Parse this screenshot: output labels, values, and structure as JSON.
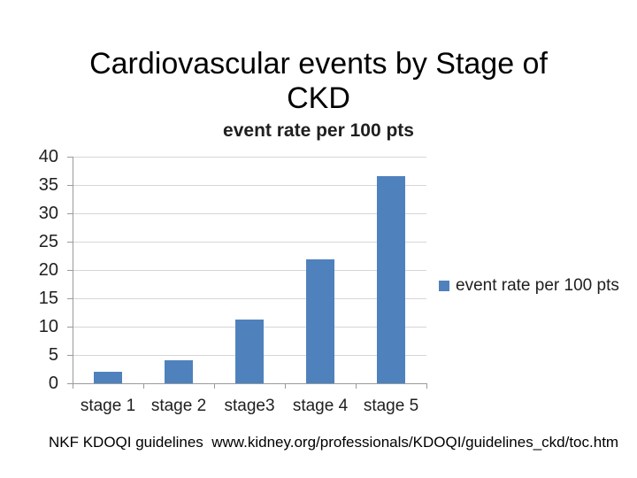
{
  "slide": {
    "title_lines": [
      "Cardiovascular events by Stage of",
      "CKD"
    ],
    "citation": "NKF KDOQI guidelines  www.kidney.org/professionals/KDOQI/guidelines_ckd/toc.htm"
  },
  "chart_data": {
    "type": "bar",
    "title": "event rate per 100 pts",
    "categories": [
      "stage 1",
      "stage 2",
      "stage3",
      "stage 4",
      "stage 5"
    ],
    "values": [
      2.1,
      4,
      11.3,
      21.8,
      36.6
    ],
    "series": [
      {
        "name": "event rate per 100 pts",
        "values": [
          2.1,
          4,
          11.3,
          21.8,
          36.6
        ]
      }
    ],
    "xlabel": "",
    "ylabel": "",
    "ylim": [
      0,
      40
    ],
    "ytick_step": 5,
    "yticks": [
      0,
      5,
      10,
      15,
      20,
      25,
      30,
      35,
      40
    ],
    "grid": true,
    "legend": {
      "label": "event rate per 100 pts",
      "position": "right"
    },
    "colors": {
      "bar": "#4f81bd",
      "gridline": "#d6d6d6",
      "axis": "#9a9a9a",
      "label": "#1f1f1f"
    }
  }
}
